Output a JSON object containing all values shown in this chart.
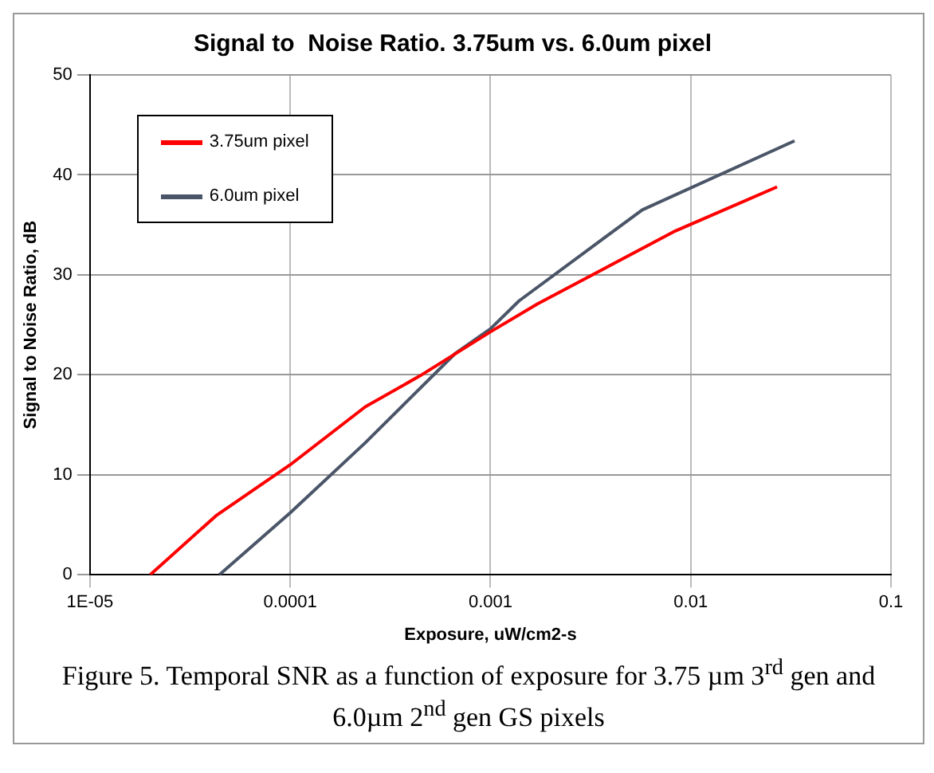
{
  "chart_data": {
    "type": "line",
    "title": "Signal to  Noise Ratio. 3.75um vs. 6.0um pixel",
    "xlabel": "Exposure, uW/cm2-s",
    "ylabel": "Signal to Noise Ratio, dB",
    "log": "x",
    "xlim": [
      1e-05,
      0.1
    ],
    "xticks": [
      {
        "value": 1e-05,
        "label": "1E-05"
      },
      0.0001,
      0.001,
      0.01,
      0.1
    ],
    "ylim": [
      0,
      50
    ],
    "yticks": [
      0,
      10,
      20,
      30,
      40,
      50
    ],
    "grid": true,
    "legend": "top left",
    "marker": "none",
    "line_style": "solid",
    "series": [
      {
        "name": "3.75um pixel",
        "color": "#ff0000",
        "x": [
          2e-05,
          4.26e-05,
          0.0001,
          0.000237,
          0.000445,
          0.001,
          0.00172,
          0.0082,
          0.027
        ],
        "values": [
          0,
          5.9,
          11,
          16.8,
          19.9,
          24.3,
          27.1,
          34.3,
          38.8
        ]
      },
      {
        "name": "6.0um pixel",
        "color": "#4a5568",
        "x": [
          4.43e-05,
          0.0001,
          0.000237,
          0.000664,
          0.001,
          0.00139,
          0.00573,
          0.033
        ],
        "values": [
          0,
          6.2,
          13.2,
          22.1,
          24.6,
          27.4,
          36.5,
          43.4
        ]
      }
    ],
    "annotations": [
      "Figure 5. Temporal SNR as a function of exposure for 3.75 µm 3$^{rd}$ gen and 6.0µm 2$^{nd}$ gen GS pixels"
    ]
  }
}
